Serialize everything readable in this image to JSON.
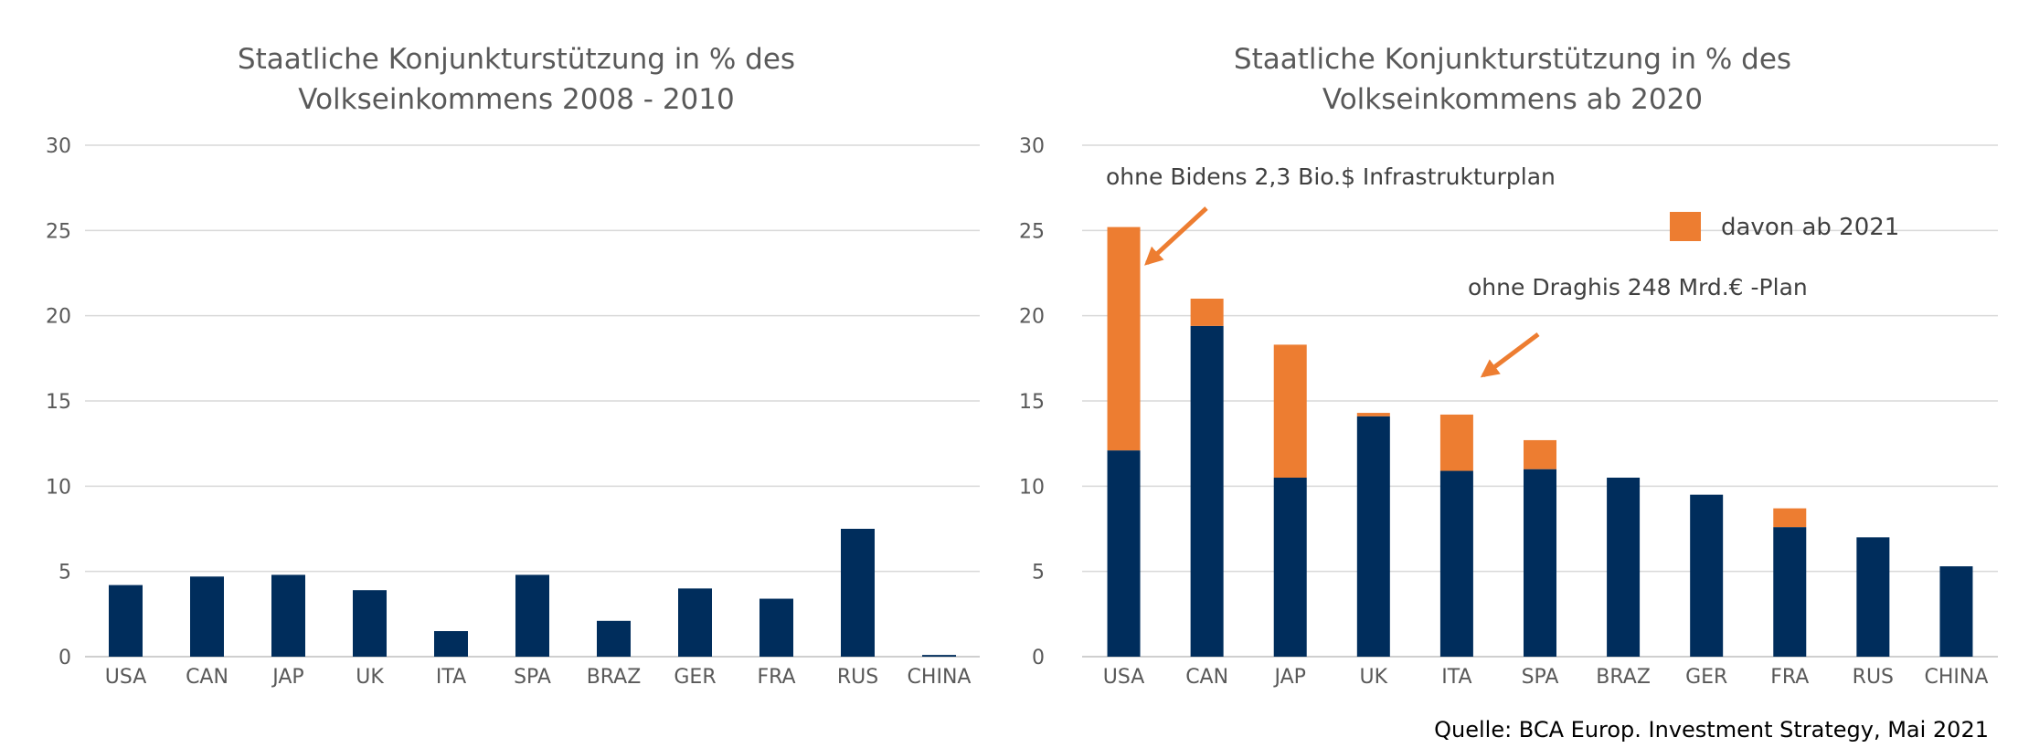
{
  "colors": {
    "base": "#002D5C",
    "stack": "#ED7D31",
    "grid": "#D9D9D9",
    "text": "#595959"
  },
  "source": "Quelle: BCA Europ. Investment Strategy, Mai 2021",
  "chart_data": [
    {
      "type": "bar",
      "title_line1": "Staatliche Konjunkturstützung in % des",
      "title_line2": "Volkseinkommens 2008 - 2010",
      "categories": [
        "USA",
        "CAN",
        "JAP",
        "UK",
        "ITA",
        "SPA",
        "BRAZ",
        "GER",
        "FRA",
        "RUS",
        "CHINA"
      ],
      "ylim": [
        0,
        30
      ],
      "yticks": [
        "0",
        "5",
        "10",
        "15",
        "20",
        "25",
        "30"
      ],
      "grid": true,
      "series": [
        {
          "values": [
            4.2,
            4.7,
            4.8,
            3.9,
            1.5,
            4.8,
            2.1,
            4.0,
            3.4,
            7.5,
            0.1
          ]
        }
      ]
    },
    {
      "type": "bar",
      "stacked": true,
      "title_line1": "Staatliche Konjunkturstützung in % des",
      "title_line2": "Volkseinkommens ab 2020",
      "categories": [
        "USA",
        "CAN",
        "JAP",
        "UK",
        "ITA",
        "SPA",
        "BRAZ",
        "GER",
        "FRA",
        "RUS",
        "CHINA"
      ],
      "ylim": [
        0,
        30
      ],
      "yticks": [
        "0",
        "5",
        "10",
        "15",
        "20",
        "25",
        "30"
      ],
      "grid": true,
      "legend_position": "top-right",
      "series": [
        {
          "values": [
            12.1,
            19.4,
            10.5,
            14.1,
            10.9,
            11.0,
            10.5,
            9.5,
            7.6,
            7.0,
            5.3
          ]
        },
        {
          "name": "davon ab 2021",
          "values": [
            13.1,
            1.6,
            7.8,
            0.2,
            3.3,
            1.7,
            0,
            0,
            1.1,
            0,
            0
          ]
        }
      ],
      "annotations": [
        {
          "text": "ohne Bidens 2,3 Bio.$ Infrastrukturplan"
        },
        {
          "text": "ohne Draghis 248 Mrd.€ -Plan"
        }
      ]
    }
  ]
}
